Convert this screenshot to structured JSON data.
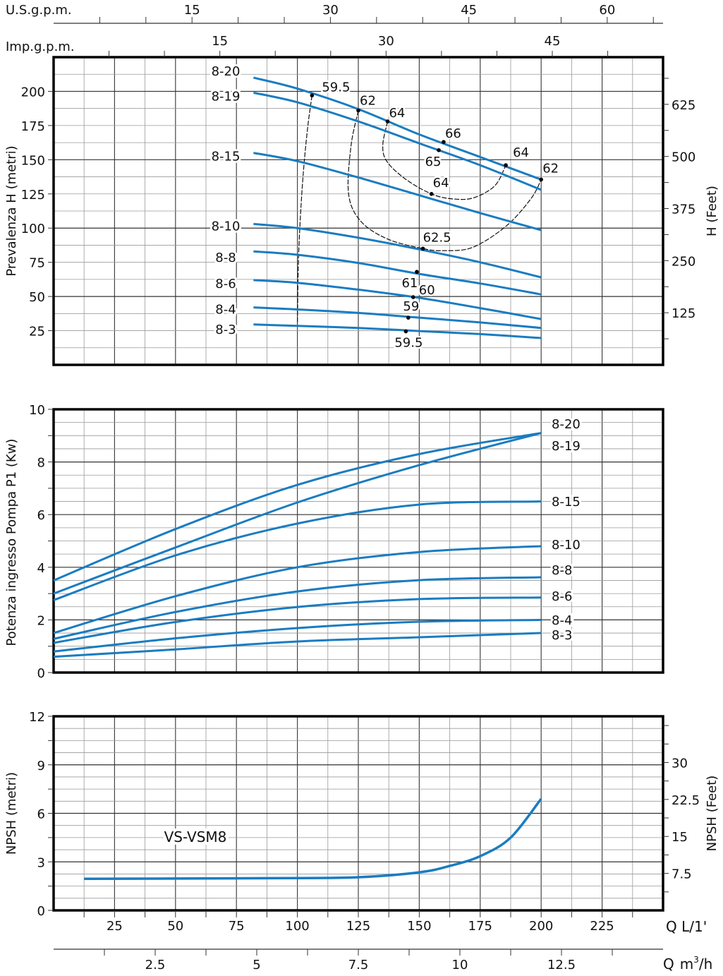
{
  "colors": {
    "curve": "#1a7cc1",
    "grid_minor": "#9a9a9a",
    "grid_major": "#333333",
    "frame": "#000000",
    "dash": "#111111"
  },
  "top_axes": {
    "us_gpm": {
      "label": "U.S.g.p.m.",
      "ticks": [
        15,
        30,
        45,
        60
      ],
      "minor_step": 5
    },
    "imp_gpm": {
      "label": "Imp.g.p.m.",
      "ticks": [
        15,
        30,
        45
      ],
      "minor_step": 5
    }
  },
  "bottom_axes": {
    "q_lmin": {
      "label": "Q L/1'",
      "ticks": [
        25,
        50,
        75,
        100,
        125,
        150,
        175,
        200,
        225
      ]
    },
    "q_m3h": {
      "label_q": "Q",
      "label_unit": "m",
      "label_sup": "3",
      "label_tail": "/h",
      "ticks": [
        2.5,
        5,
        7.5,
        10,
        12.5
      ],
      "minor_step": 1.25
    }
  },
  "chart_data": [
    {
      "type": "line",
      "title": "",
      "ylabel": "Prevalenza H (metri)",
      "ylabel_right": "H (Feet)",
      "xlim": [
        0,
        250
      ],
      "ylim": [
        0,
        225
      ],
      "yticks": [
        25,
        50,
        75,
        100,
        125,
        150,
        175,
        200
      ],
      "yticks_right": [
        125,
        250,
        375,
        500,
        625
      ],
      "grid": true,
      "x": [
        82,
        100,
        125,
        150,
        175,
        200
      ],
      "series": [
        {
          "name": "8-20",
          "values": [
            210,
            202,
            187,
            168.5,
            152,
            135.5
          ]
        },
        {
          "name": "8-19",
          "values": [
            199,
            192,
            178,
            162,
            146,
            128
          ]
        },
        {
          "name": "8-15",
          "values": [
            155,
            149,
            137,
            124,
            111,
            98.5
          ]
        },
        {
          "name": "8-10",
          "values": [
            103,
            100,
            93,
            84.5,
            75,
            64
          ]
        },
        {
          "name": "8-8",
          "values": [
            83,
            80.5,
            74.5,
            66.5,
            59.5,
            51.5
          ]
        },
        {
          "name": "8-6",
          "values": [
            62,
            60,
            55,
            49,
            41.5,
            33.5
          ]
        },
        {
          "name": "8-4",
          "values": [
            42,
            40.5,
            38,
            34.5,
            31,
            27
          ]
        },
        {
          "name": "8-3",
          "values": [
            29.5,
            28.5,
            27,
            24.7,
            22.5,
            19.6
          ]
        }
      ],
      "efficiency_points": [
        {
          "label": "59.5",
          "q": 106,
          "h": 197
        },
        {
          "label": "62",
          "q": 125,
          "h": 186
        },
        {
          "label": "64",
          "q": 137,
          "h": 178
        },
        {
          "label": "66",
          "q": 160,
          "h": 163
        },
        {
          "label": "65",
          "q": 158,
          "h": 157
        },
        {
          "label": "64",
          "q": 185.5,
          "h": 146
        },
        {
          "label": "62",
          "q": 200,
          "h": 135.5
        },
        {
          "label": "64",
          "q": 155,
          "h": 125
        },
        {
          "label": "62.5",
          "q": 151.5,
          "h": 85
        },
        {
          "label": "61",
          "q": 149,
          "h": 68
        },
        {
          "label": "60",
          "q": 147.5,
          "h": 49.5
        },
        {
          "label": "59",
          "q": 145.5,
          "h": 34.5
        },
        {
          "label": "59.5",
          "q": 144.5,
          "h": 24.5
        }
      ],
      "efficiency_curves": [
        {
          "name": "iso-59.5",
          "points": [
            [
              106,
              197
            ],
            [
              104,
              170
            ],
            [
              102,
              130
            ],
            [
              100.5,
              80
            ],
            [
              100,
              30
            ]
          ]
        },
        {
          "name": "iso-62",
          "points": [
            [
              125,
              186
            ],
            [
              122,
              160
            ],
            [
              121,
              125
            ],
            [
              126,
              105
            ],
            [
              137,
              92
            ],
            [
              151.5,
              85
            ],
            [
              160,
              83.5
            ],
            [
              172,
              86
            ],
            [
              186,
              102
            ],
            [
              196,
              122
            ],
            [
              200,
              135.5
            ]
          ]
        },
        {
          "name": "iso-64",
          "points": [
            [
              137,
              178
            ],
            [
              135,
              160
            ],
            [
              137,
              148
            ],
            [
              145,
              135
            ],
            [
              155,
              125
            ],
            [
              163,
              121.5
            ],
            [
              172,
              122
            ],
            [
              181,
              131
            ],
            [
              185.5,
              146
            ]
          ]
        }
      ],
      "series_labels_side": "left"
    },
    {
      "type": "line",
      "ylabel": "Potenza ingresso Pompa P1 (Kw)",
      "xlim": [
        0,
        250
      ],
      "ylim": [
        0,
        10
      ],
      "yticks": [
        0,
        2,
        4,
        6,
        8,
        10
      ],
      "grid": true,
      "x": [
        0,
        50,
        100,
        150,
        200
      ],
      "series": [
        {
          "name": "8-20",
          "values": [
            3.5,
            5.45,
            7.13,
            8.3,
            9.1
          ]
        },
        {
          "name": "8-19",
          "values": [
            3.0,
            4.75,
            6.46,
            7.88,
            9.1
          ]
        },
        {
          "name": "8-15",
          "values": [
            2.75,
            4.45,
            5.66,
            6.38,
            6.5
          ]
        },
        {
          "name": "8-10",
          "values": [
            1.5,
            2.9,
            4.0,
            4.58,
            4.8
          ]
        },
        {
          "name": "8-8",
          "values": [
            1.28,
            2.3,
            3.08,
            3.51,
            3.62
          ]
        },
        {
          "name": "8-6",
          "values": [
            1.13,
            1.92,
            2.49,
            2.79,
            2.85
          ]
        },
        {
          "name": "8-4",
          "values": [
            0.8,
            1.3,
            1.69,
            1.93,
            2.0
          ]
        },
        {
          "name": "8-3",
          "values": [
            0.6,
            0.88,
            1.18,
            1.34,
            1.5
          ]
        }
      ],
      "series_labels_side": "right"
    },
    {
      "type": "line",
      "ylabel": "NPSH (metri)",
      "ylabel_right": "NPSH (Feet)",
      "annotation": "VS-VSM8",
      "xlim": [
        0,
        250
      ],
      "ylim": [
        0,
        12
      ],
      "yticks": [
        0,
        3,
        6,
        9,
        12
      ],
      "yticks_right": [
        7.5,
        15,
        22.5,
        30
      ],
      "grid": true,
      "x": [
        12.5,
        50,
        100,
        125,
        150,
        162.5,
        175,
        187.5,
        200
      ],
      "series": [
        {
          "name": "VS-VSM8",
          "values": [
            1.95,
            1.97,
            2.0,
            2.05,
            2.35,
            2.75,
            3.35,
            4.5,
            6.9
          ]
        }
      ]
    }
  ]
}
